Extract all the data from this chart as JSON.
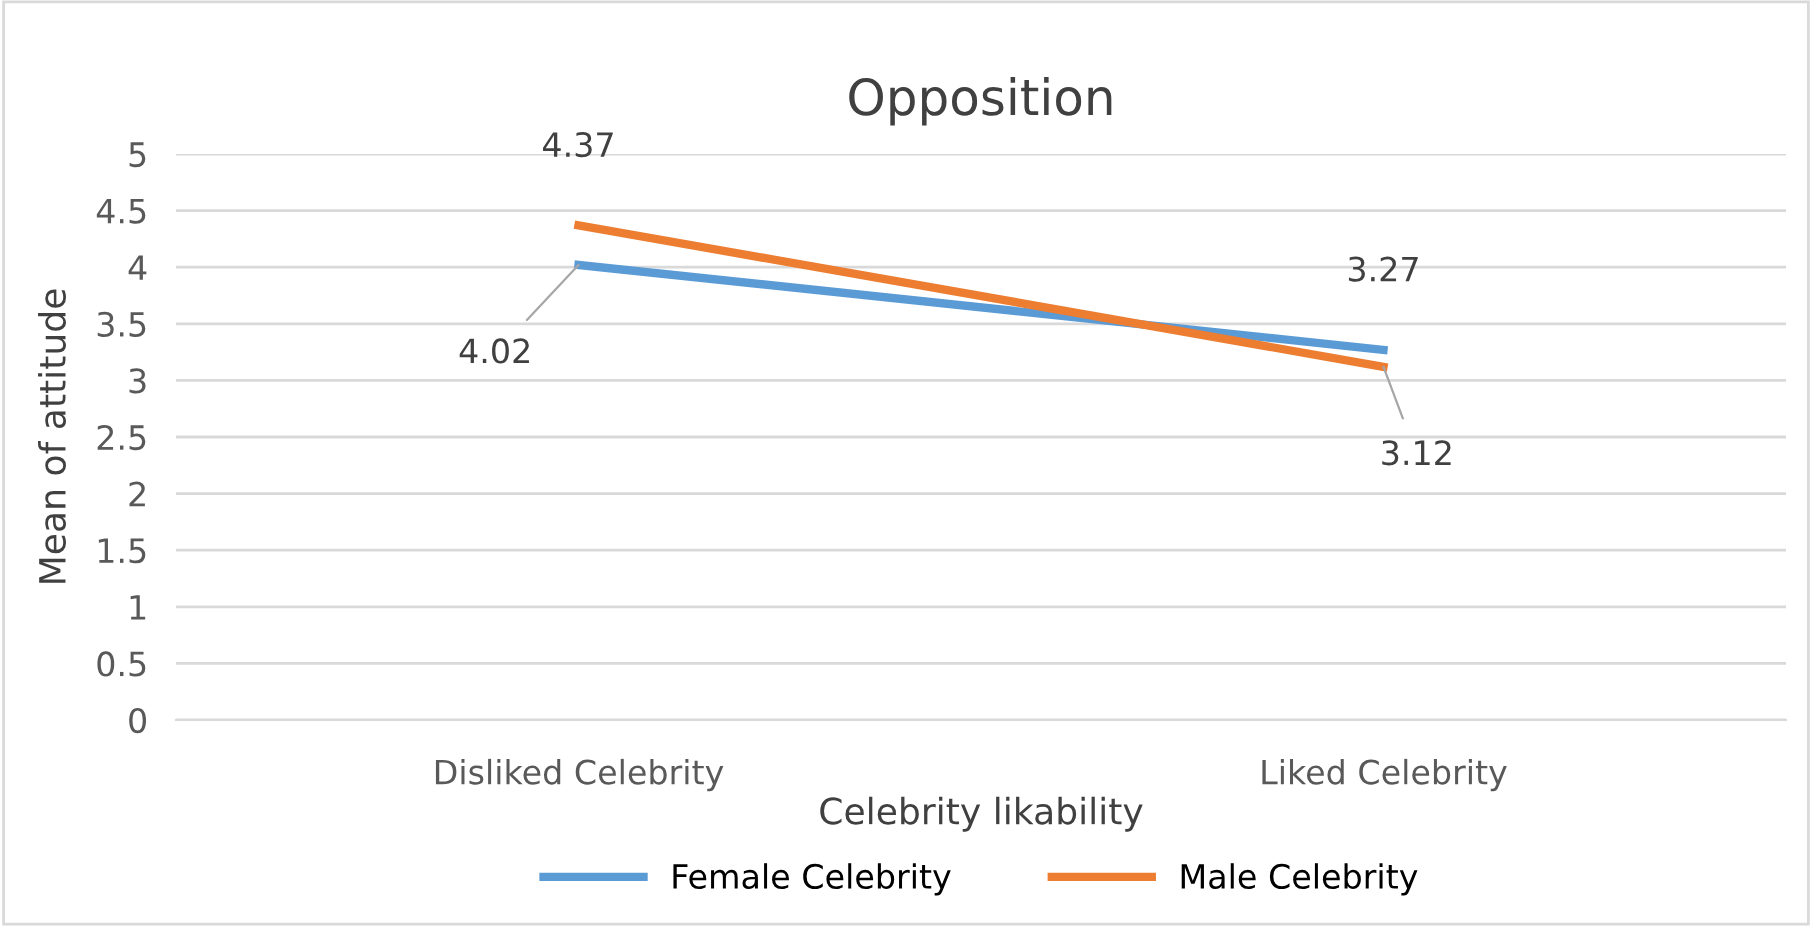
{
  "chart_data": {
    "type": "line",
    "title": "Opposition",
    "xlabel": "Celebrity likability",
    "ylabel": "Mean of attitude",
    "categories": [
      "Disliked Celebrity",
      "Liked Celebrity"
    ],
    "series": [
      {
        "name": "Female Celebrity",
        "color": "#5b9bd5",
        "values": [
          4.02,
          3.27
        ]
      },
      {
        "name": "Male Celebrity",
        "color": "#ed7d31",
        "values": [
          4.37,
          3.12
        ]
      }
    ],
    "ylim": [
      0,
      5
    ],
    "yticks": [
      0,
      0.5,
      1,
      1.5,
      2,
      2.5,
      3,
      3.5,
      4,
      4.5,
      5
    ],
    "grid": "y",
    "legend": "bottom",
    "data_labels": true,
    "marker": "none",
    "line_style": "solid"
  }
}
